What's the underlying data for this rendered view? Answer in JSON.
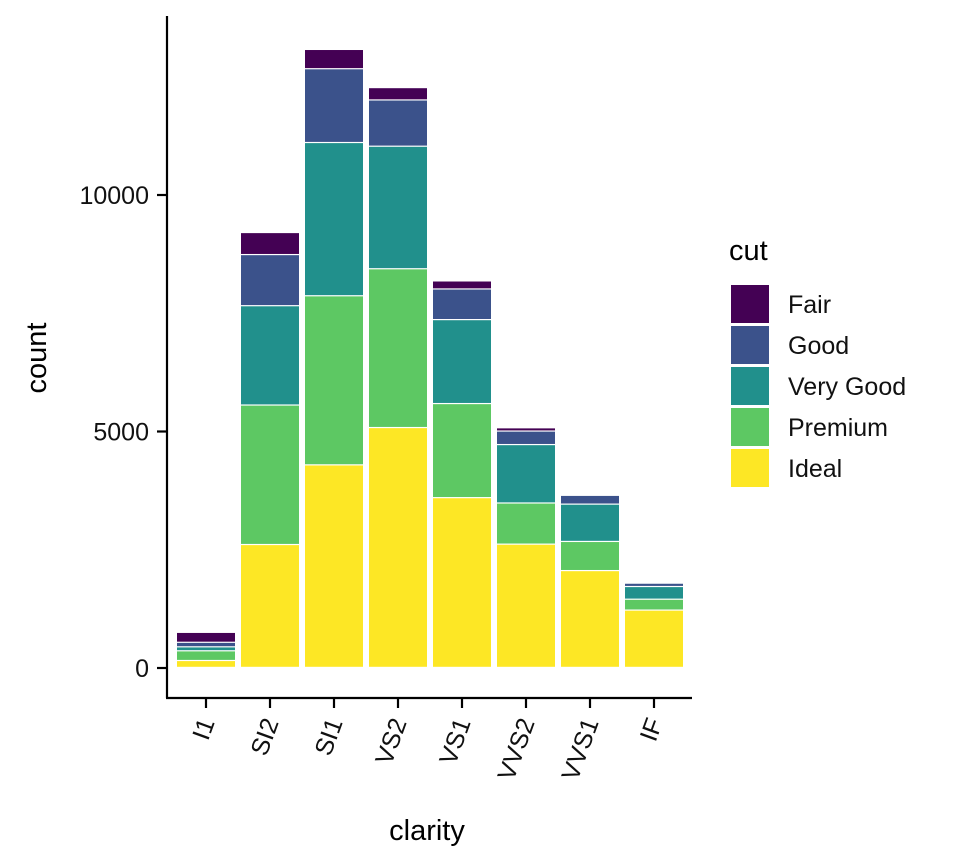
{
  "chart_data": {
    "type": "bar",
    "stacked": true,
    "title": "",
    "xlabel": "clarity",
    "ylabel": "count",
    "categories": [
      "I1",
      "SI2",
      "SI1",
      "VS2",
      "VS1",
      "VVS2",
      "VVS1",
      "IF"
    ],
    "ylim": [
      0,
      13000
    ],
    "y_ticks": [
      0,
      5000,
      10000
    ],
    "legend_title": "cut",
    "legend_position": "right",
    "grid": false,
    "series": [
      {
        "name": "Fair",
        "color": "#440154",
        "values": [
          210,
          466,
          408,
          261,
          170,
          69,
          17,
          9
        ]
      },
      {
        "name": "Good",
        "color": "#3B528B",
        "values": [
          96,
          1081,
          1560,
          978,
          648,
          286,
          186,
          71
        ]
      },
      {
        "name": "Very Good",
        "color": "#21908C",
        "values": [
          84,
          2100,
          3240,
          2591,
          1775,
          1235,
          789,
          268
        ]
      },
      {
        "name": "Premium",
        "color": "#5DC863",
        "values": [
          205,
          2949,
          3575,
          3357,
          1989,
          870,
          616,
          230
        ]
      },
      {
        "name": "Ideal",
        "color": "#FDE725",
        "values": [
          146,
          2598,
          4282,
          5071,
          3589,
          2606,
          2047,
          1212
        ]
      }
    ]
  }
}
